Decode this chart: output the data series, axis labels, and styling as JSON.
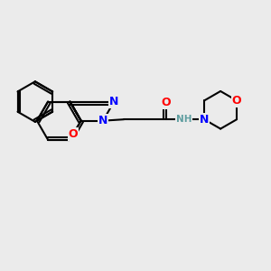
{
  "bg_color": "#ebebeb",
  "bond_color": "#000000",
  "atom_colors": {
    "N": "#0000ff",
    "O": "#ff0000",
    "NH": "#5f9ea0",
    "C": "#000000"
  },
  "line_width": 1.5
}
